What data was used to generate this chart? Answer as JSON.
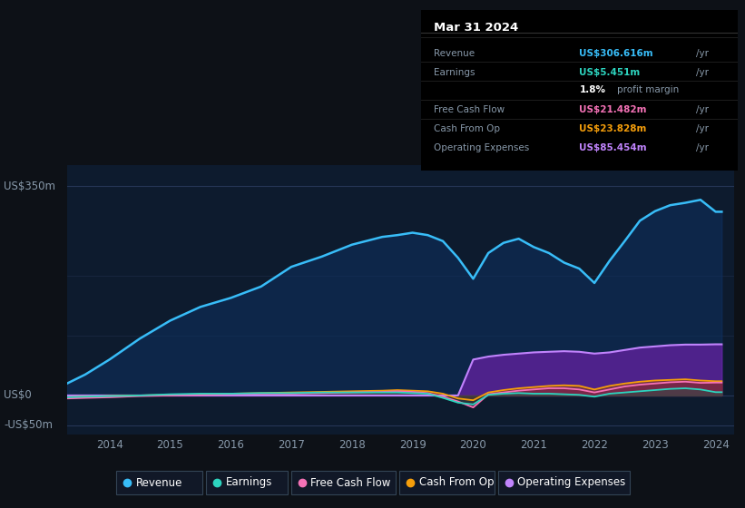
{
  "bg_color": "#0d1117",
  "plot_bg_color": "#0d1b2e",
  "grid_color": "#253555",
  "info_box_bg": "#000000",
  "title": "Mar 31 2024",
  "ylabel_top": "US$350m",
  "ylabel_zero": "US$0",
  "ylabel_neg": "-US$50m",
  "info_box": {
    "title": "Mar 31 2024",
    "rows": [
      {
        "label": "Revenue",
        "value": "US$306.616m",
        "color": "#38bdf8"
      },
      {
        "label": "Earnings",
        "value": "US$5.451m",
        "color": "#2dd4bf"
      },
      {
        "label": "",
        "value": "1.8% profit margin",
        "color": "#ffffff"
      },
      {
        "label": "Free Cash Flow",
        "value": "US$21.482m",
        "color": "#f472b6"
      },
      {
        "label": "Cash From Op",
        "value": "US$23.828m",
        "color": "#f59e0b"
      },
      {
        "label": "Operating Expenses",
        "value": "US$85.454m",
        "color": "#c084fc"
      }
    ]
  },
  "years": [
    2013.3,
    2013.6,
    2014.0,
    2014.5,
    2015.0,
    2015.5,
    2016.0,
    2016.5,
    2017.0,
    2017.5,
    2018.0,
    2018.5,
    2018.75,
    2019.0,
    2019.25,
    2019.5,
    2019.75,
    2020.0,
    2020.25,
    2020.5,
    2020.75,
    2021.0,
    2021.25,
    2021.5,
    2021.75,
    2022.0,
    2022.25,
    2022.5,
    2022.75,
    2023.0,
    2023.25,
    2023.5,
    2023.75,
    2024.0,
    2024.1
  ],
  "revenue": [
    20,
    35,
    60,
    95,
    125,
    148,
    163,
    182,
    215,
    232,
    252,
    265,
    268,
    272,
    268,
    258,
    230,
    195,
    238,
    255,
    262,
    248,
    238,
    222,
    212,
    188,
    225,
    258,
    292,
    308,
    318,
    322,
    327,
    307,
    307
  ],
  "earnings": [
    -3,
    -2,
    -1,
    0,
    2,
    3,
    3,
    4,
    4,
    5,
    5,
    5,
    5,
    4,
    3,
    -4,
    -12,
    -15,
    1,
    3,
    4,
    3,
    3,
    2,
    1,
    -2,
    3,
    5,
    7,
    9,
    11,
    12,
    10,
    5.5,
    5.5
  ],
  "fcf": [
    -5,
    -4,
    -3,
    -1,
    0,
    1,
    2,
    3,
    3,
    4,
    5,
    6,
    7,
    6,
    4,
    -2,
    -10,
    -20,
    2,
    5,
    8,
    10,
    12,
    12,
    10,
    5,
    10,
    15,
    18,
    20,
    22,
    23,
    21,
    21.5,
    21.5
  ],
  "cashfromop": [
    -3,
    -2,
    -1,
    0,
    1,
    2,
    3,
    4,
    5,
    6,
    7,
    8,
    9,
    8,
    7,
    3,
    -5,
    -8,
    5,
    9,
    12,
    14,
    16,
    17,
    16,
    10,
    16,
    20,
    23,
    25,
    26,
    27,
    25,
    23.8,
    23.8
  ],
  "opex": [
    0,
    0,
    0,
    0,
    0,
    0,
    0,
    0,
    0,
    0,
    0,
    0,
    0,
    0,
    0,
    0,
    0,
    60,
    65,
    68,
    70,
    72,
    73,
    74,
    73,
    70,
    72,
    76,
    80,
    82,
    84,
    85,
    85,
    85.5,
    85.5
  ],
  "colors": {
    "revenue": "#38bdf8",
    "earnings": "#2dd4bf",
    "fcf": "#f472b6",
    "cashfromop": "#f59e0b",
    "opex": "#c084fc"
  },
  "legend": [
    {
      "label": "Revenue",
      "color": "#38bdf8"
    },
    {
      "label": "Earnings",
      "color": "#2dd4bf"
    },
    {
      "label": "Free Cash Flow",
      "color": "#f472b6"
    },
    {
      "label": "Cash From Op",
      "color": "#f59e0b"
    },
    {
      "label": "Operating Expenses",
      "color": "#c084fc"
    }
  ],
  "xticks": [
    2014,
    2015,
    2016,
    2017,
    2018,
    2019,
    2020,
    2021,
    2022,
    2023,
    2024
  ],
  "xlim": [
    2013.3,
    2024.3
  ],
  "ylim": [
    -65,
    385
  ]
}
